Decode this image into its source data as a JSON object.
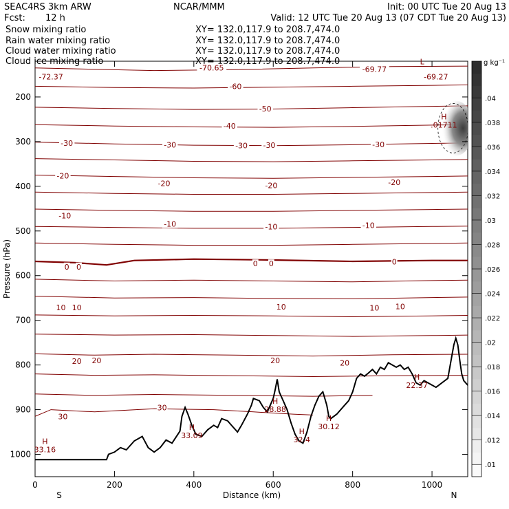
{
  "header": {
    "model": "SEAC4RS  3km ARW",
    "center": "NCAR/MMM",
    "init": "Init: 00 UTC Tue 20 Aug 13",
    "fcst_label": "Fcst:",
    "fcst_value": "12 h",
    "valid": "Valid: 12 UTC Tue 20 Aug 13 (07 CDT Tue 20 Aug 13)"
  },
  "colors": {
    "snow": "#000000",
    "rain": "#e00000",
    "cloud_water": "#1010c0",
    "cloud_ice": "#000000",
    "contour": "#800000",
    "terrain": "#000000"
  },
  "chart_data": {
    "type": "contour",
    "fields": [
      {
        "name": "Snow mixing ratio",
        "xy": "XY= 132.0,117.9 to 208.7,474.0"
      },
      {
        "name": "Rain water mixing ratio",
        "xy": "XY= 132.0,117.9 to 208.7,474.0"
      },
      {
        "name": "Cloud water mixing ratio",
        "xy": "XY= 132.0,117.9 to 208.7,474.0"
      },
      {
        "name": "Cloud ice mixing ratio",
        "xy": "XY= 132.0,117.9 to 208.7,474.0"
      }
    ],
    "xlabel": "Distance (km)",
    "ylabel": "Pressure (hPa)",
    "xlim": [
      0,
      1090
    ],
    "ylim": [
      1050,
      120
    ],
    "x_ticks": [
      0,
      200,
      400,
      600,
      800,
      1000
    ],
    "y_ticks": [
      200,
      300,
      400,
      500,
      600,
      700,
      800,
      900,
      1000
    ],
    "x_end_labels": {
      "left": "S",
      "right": "N"
    },
    "colorbar": {
      "units": "g kg⁻¹",
      "ticks": [
        ".01",
        ".012",
        ".014",
        ".016",
        ".018",
        ".02",
        ".022",
        ".024",
        ".026",
        ".028",
        ".03",
        ".032",
        ".034",
        ".036",
        ".038",
        ".04"
      ],
      "min": 0.009,
      "max": 0.043
    },
    "contours": [
      {
        "value": -70,
        "points": [
          [
            0,
            135
          ],
          [
            150,
            138
          ],
          [
            300,
            141
          ],
          [
            500,
            139
          ],
          [
            700,
            135
          ],
          [
            900,
            132
          ],
          [
            1090,
            131
          ]
        ]
      },
      {
        "value": -60,
        "points": [
          [
            0,
            176
          ],
          [
            200,
            179
          ],
          [
            400,
            180
          ],
          [
            600,
            178
          ],
          [
            800,
            176
          ],
          [
            1000,
            174
          ],
          [
            1090,
            173
          ]
        ]
      },
      {
        "value": -50,
        "points": [
          [
            0,
            223
          ],
          [
            200,
            226
          ],
          [
            400,
            228
          ],
          [
            600,
            227
          ],
          [
            800,
            224
          ],
          [
            1000,
            221
          ],
          [
            1090,
            220
          ]
        ]
      },
      {
        "value": -40,
        "points": [
          [
            0,
            262
          ],
          [
            200,
            265
          ],
          [
            400,
            267
          ],
          [
            600,
            268
          ],
          [
            800,
            266
          ],
          [
            1000,
            263
          ],
          [
            1090,
            262
          ]
        ]
      },
      {
        "value": -30,
        "points": [
          [
            0,
            301
          ],
          [
            200,
            305
          ],
          [
            400,
            308
          ],
          [
            600,
            309
          ],
          [
            800,
            307
          ],
          [
            1000,
            304
          ],
          [
            1090,
            303
          ]
        ]
      },
      {
        "value": -30,
        "points": [
          [
            0,
            338
          ],
          [
            200,
            341
          ],
          [
            400,
            344
          ],
          [
            600,
            345
          ],
          [
            800,
            343
          ],
          [
            1000,
            341
          ],
          [
            1090,
            340
          ]
        ]
      },
      {
        "value": -20,
        "points": [
          [
            0,
            375
          ],
          [
            200,
            378
          ],
          [
            400,
            381
          ],
          [
            600,
            382
          ],
          [
            800,
            380
          ],
          [
            1000,
            378
          ],
          [
            1090,
            377
          ]
        ]
      },
      {
        "value": -20,
        "points": [
          [
            0,
            413
          ],
          [
            200,
            416
          ],
          [
            400,
            418
          ],
          [
            600,
            418
          ],
          [
            800,
            416
          ],
          [
            1000,
            414
          ],
          [
            1090,
            413
          ]
        ]
      },
      {
        "value": -10,
        "points": [
          [
            0,
            451
          ],
          [
            200,
            454
          ],
          [
            400,
            456
          ],
          [
            600,
            456
          ],
          [
            800,
            454
          ],
          [
            1000,
            452
          ],
          [
            1090,
            451
          ]
        ]
      },
      {
        "value": -10,
        "points": [
          [
            0,
            490
          ],
          [
            200,
            492
          ],
          [
            400,
            494
          ],
          [
            600,
            494
          ],
          [
            800,
            492
          ],
          [
            1000,
            490
          ],
          [
            1090,
            489
          ]
        ]
      },
      {
        "value": 0,
        "points": [
          [
            0,
            527
          ],
          [
            200,
            530
          ],
          [
            400,
            532
          ],
          [
            600,
            532
          ],
          [
            800,
            530
          ],
          [
            1000,
            528
          ],
          [
            1090,
            527
          ]
        ]
      },
      {
        "value": 0,
        "points": [
          [
            0,
            568
          ],
          [
            100,
            571
          ],
          [
            180,
            576
          ],
          [
            250,
            566
          ],
          [
            400,
            563
          ],
          [
            600,
            565
          ],
          [
            800,
            568
          ],
          [
            1000,
            566
          ],
          [
            1090,
            566
          ]
        ]
      },
      {
        "value": 0,
        "points": [
          [
            0,
            608
          ],
          [
            200,
            612
          ],
          [
            400,
            610
          ],
          [
            600,
            612
          ],
          [
            800,
            614
          ],
          [
            1000,
            611
          ],
          [
            1090,
            610
          ]
        ]
      },
      {
        "value": 10,
        "points": [
          [
            0,
            646
          ],
          [
            200,
            650
          ],
          [
            400,
            649
          ],
          [
            600,
            651
          ],
          [
            800,
            652
          ],
          [
            1000,
            649
          ],
          [
            1090,
            648
          ]
        ]
      },
      {
        "value": 10,
        "points": [
          [
            0,
            688
          ],
          [
            200,
            690
          ],
          [
            400,
            689
          ],
          [
            600,
            690
          ],
          [
            800,
            692
          ],
          [
            1000,
            690
          ],
          [
            1090,
            689
          ]
        ]
      },
      {
        "value": 20,
        "points": [
          [
            0,
            731
          ],
          [
            200,
            733
          ],
          [
            400,
            732
          ],
          [
            600,
            734
          ],
          [
            800,
            736
          ],
          [
            1000,
            734
          ],
          [
            1090,
            733
          ]
        ]
      },
      {
        "value": 20,
        "points": [
          [
            0,
            775
          ],
          [
            150,
            778
          ],
          [
            300,
            776
          ],
          [
            500,
            778
          ],
          [
            700,
            780
          ],
          [
            900,
            777
          ],
          [
            1090,
            776
          ]
        ]
      },
      {
        "value": 20,
        "points": [
          [
            0,
            820
          ],
          [
            150,
            823
          ],
          [
            300,
            822
          ],
          [
            500,
            824
          ],
          [
            700,
            826
          ],
          [
            900,
            824
          ],
          [
            1090,
            823
          ]
        ]
      },
      {
        "value": 30,
        "points": [
          [
            0,
            865
          ],
          [
            150,
            868
          ],
          [
            300,
            866
          ],
          [
            500,
            868
          ],
          [
            700,
            870
          ],
          [
            850,
            868
          ]
        ]
      },
      {
        "value": 30,
        "points": [
          [
            0,
            915
          ],
          [
            40,
            900
          ],
          [
            150,
            905
          ],
          [
            300,
            898
          ],
          [
            450,
            900
          ],
          [
            550,
            905
          ],
          [
            650,
            910
          ],
          [
            700,
            912
          ]
        ]
      }
    ],
    "contour_labels": [
      {
        "text": "-72.37",
        "x": 40,
        "p": 155
      },
      {
        "text": "-70.65",
        "x": 445,
        "p": 135
      },
      {
        "text": "-69.77",
        "x": 855,
        "p": 138
      },
      {
        "text": "-69.27",
        "x": 1010,
        "p": 155
      },
      {
        "text": "-60",
        "x": 505,
        "p": 176
      },
      {
        "text": "-50",
        "x": 580,
        "p": 226
      },
      {
        "text": "-40",
        "x": 490,
        "p": 265
      },
      {
        "text": "-30",
        "x": 80,
        "p": 303
      },
      {
        "text": "-30",
        "x": 340,
        "p": 307
      },
      {
        "text": "-30",
        "x": 520,
        "p": 309
      },
      {
        "text": "-30",
        "x": 590,
        "p": 308
      },
      {
        "text": "-30",
        "x": 865,
        "p": 306
      },
      {
        "text": "-20",
        "x": 70,
        "p": 376
      },
      {
        "text": "-20",
        "x": 325,
        "p": 393
      },
      {
        "text": "-20",
        "x": 595,
        "p": 398
      },
      {
        "text": "-20",
        "x": 905,
        "p": 391
      },
      {
        "text": "-10",
        "x": 75,
        "p": 466
      },
      {
        "text": "-10",
        "x": 340,
        "p": 484
      },
      {
        "text": "-10",
        "x": 595,
        "p": 490
      },
      {
        "text": "-10",
        "x": 840,
        "p": 487
      },
      {
        "text": "0",
        "x": 80,
        "p": 580
      },
      {
        "text": "0",
        "x": 110,
        "p": 580
      },
      {
        "text": "0",
        "x": 555,
        "p": 573
      },
      {
        "text": "0",
        "x": 595,
        "p": 573
      },
      {
        "text": "0",
        "x": 905,
        "p": 569
      },
      {
        "text": "10",
        "x": 65,
        "p": 671
      },
      {
        "text": "10",
        "x": 105,
        "p": 671
      },
      {
        "text": "10",
        "x": 620,
        "p": 670
      },
      {
        "text": "10",
        "x": 855,
        "p": 672
      },
      {
        "text": "10",
        "x": 920,
        "p": 669
      },
      {
        "text": "20",
        "x": 105,
        "p": 791
      },
      {
        "text": "20",
        "x": 155,
        "p": 790
      },
      {
        "text": "20",
        "x": 605,
        "p": 790
      },
      {
        "text": "20",
        "x": 780,
        "p": 795
      },
      {
        "text": "30",
        "x": 70,
        "p": 915
      },
      {
        "text": "30",
        "x": 320,
        "p": 895
      }
    ],
    "high_low_labels": [
      {
        "mark": "H",
        "value": "33.16",
        "x": 25,
        "p": 980
      },
      {
        "mark": "H",
        "value": "33.09",
        "x": 395,
        "p": 948
      },
      {
        "mark": "H",
        "value": "28.88",
        "x": 605,
        "p": 890
      },
      {
        "mark": "H",
        "value": "32.4",
        "x": 672,
        "p": 958
      },
      {
        "mark": "H",
        "value": "30.12",
        "x": 740,
        "p": 928
      },
      {
        "mark": "H",
        "value": "22.37",
        "x": 962,
        "p": 836
      },
      {
        "mark": "L",
        "value": "",
        "x": 975,
        "p": 130
      },
      {
        "mark": "H",
        "value": ".01711",
        "x": 1030,
        "p": 253
      }
    ],
    "terrain": [
      [
        0,
        1012
      ],
      [
        120,
        1012
      ],
      [
        180,
        1012
      ],
      [
        185,
        1000
      ],
      [
        200,
        995
      ],
      [
        215,
        985
      ],
      [
        230,
        990
      ],
      [
        250,
        970
      ],
      [
        270,
        960
      ],
      [
        285,
        985
      ],
      [
        300,
        995
      ],
      [
        315,
        985
      ],
      [
        330,
        968
      ],
      [
        345,
        975
      ],
      [
        365,
        948
      ],
      [
        370,
        915
      ],
      [
        378,
        895
      ],
      [
        385,
        910
      ],
      [
        395,
        935
      ],
      [
        405,
        955
      ],
      [
        420,
        960
      ],
      [
        435,
        945
      ],
      [
        450,
        935
      ],
      [
        460,
        940
      ],
      [
        470,
        920
      ],
      [
        485,
        925
      ],
      [
        500,
        940
      ],
      [
        510,
        950
      ],
      [
        520,
        935
      ],
      [
        535,
        910
      ],
      [
        545,
        890
      ],
      [
        550,
        875
      ],
      [
        565,
        880
      ],
      [
        575,
        895
      ],
      [
        585,
        905
      ],
      [
        590,
        895
      ],
      [
        600,
        875
      ],
      [
        605,
        855
      ],
      [
        610,
        832
      ],
      [
        615,
        860
      ],
      [
        625,
        880
      ],
      [
        635,
        900
      ],
      [
        645,
        930
      ],
      [
        655,
        955
      ],
      [
        665,
        970
      ],
      [
        675,
        975
      ],
      [
        685,
        950
      ],
      [
        695,
        915
      ],
      [
        705,
        890
      ],
      [
        715,
        870
      ],
      [
        725,
        860
      ],
      [
        735,
        890
      ],
      [
        740,
        915
      ],
      [
        745,
        920
      ],
      [
        760,
        910
      ],
      [
        775,
        895
      ],
      [
        790,
        880
      ],
      [
        800,
        860
      ],
      [
        810,
        830
      ],
      [
        820,
        820
      ],
      [
        830,
        825
      ],
      [
        840,
        818
      ],
      [
        850,
        810
      ],
      [
        860,
        820
      ],
      [
        870,
        805
      ],
      [
        880,
        810
      ],
      [
        890,
        795
      ],
      [
        900,
        800
      ],
      [
        910,
        805
      ],
      [
        920,
        800
      ],
      [
        930,
        810
      ],
      [
        940,
        805
      ],
      [
        950,
        820
      ],
      [
        960,
        840
      ],
      [
        970,
        845
      ],
      [
        980,
        835
      ],
      [
        990,
        840
      ],
      [
        1000,
        845
      ],
      [
        1010,
        850
      ],
      [
        1025,
        840
      ],
      [
        1040,
        830
      ],
      [
        1050,
        780
      ],
      [
        1055,
        755
      ],
      [
        1060,
        740
      ],
      [
        1065,
        755
      ],
      [
        1070,
        790
      ],
      [
        1075,
        820
      ],
      [
        1080,
        835
      ],
      [
        1090,
        845
      ]
    ],
    "ice_blob": {
      "x": 1060,
      "p": 270
    }
  }
}
